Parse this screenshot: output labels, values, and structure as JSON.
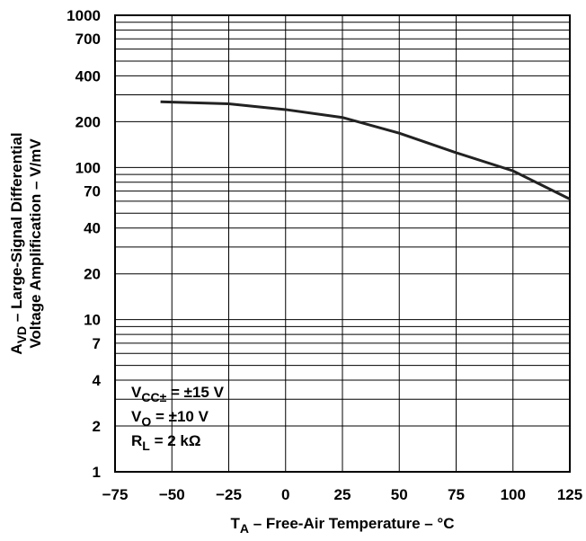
{
  "chart_data": {
    "type": "line",
    "x_label": {
      "main": "T",
      "sub": "A",
      "rest": " – Free-Air Temperature – °C"
    },
    "y_label": [
      {
        "main": "A",
        "sub": "VD",
        "rest": " – Large-Signal Differential"
      },
      {
        "main": "Voltage Amplification – V/mV",
        "sub": "",
        "rest": ""
      }
    ],
    "annotations": [
      {
        "main": "V",
        "sub": "CC±",
        "rest": " = ±15 V"
      },
      {
        "main": "V",
        "sub": "O",
        "rest": " = ±10 V"
      },
      {
        "main": "R",
        "sub": "L",
        "rest": " = 2 kΩ"
      }
    ],
    "x": [
      -55,
      -25,
      0,
      25,
      50,
      75,
      100,
      125
    ],
    "series": [
      {
        "color": "#222222",
        "values": [
          270,
          262,
          240,
          213,
          168,
          125,
          95,
          62
        ]
      }
    ],
    "xlim": [
      -75,
      125
    ],
    "xticks": [
      {
        "value": -75,
        "label": "−75"
      },
      {
        "value": -50,
        "label": "−50"
      },
      {
        "value": -25,
        "label": "−25"
      },
      0,
      25,
      50,
      75,
      100,
      125
    ],
    "ylim": [
      1,
      1000
    ],
    "log_y": true,
    "yticks": [
      1,
      2,
      4,
      7,
      10,
      20,
      40,
      70,
      100,
      200,
      400,
      700,
      1000
    ],
    "y_minor_ticks": [
      3,
      5,
      6,
      8,
      9,
      30,
      50,
      60,
      80,
      90,
      300,
      500,
      600,
      800,
      900
    ],
    "grid": true
  }
}
